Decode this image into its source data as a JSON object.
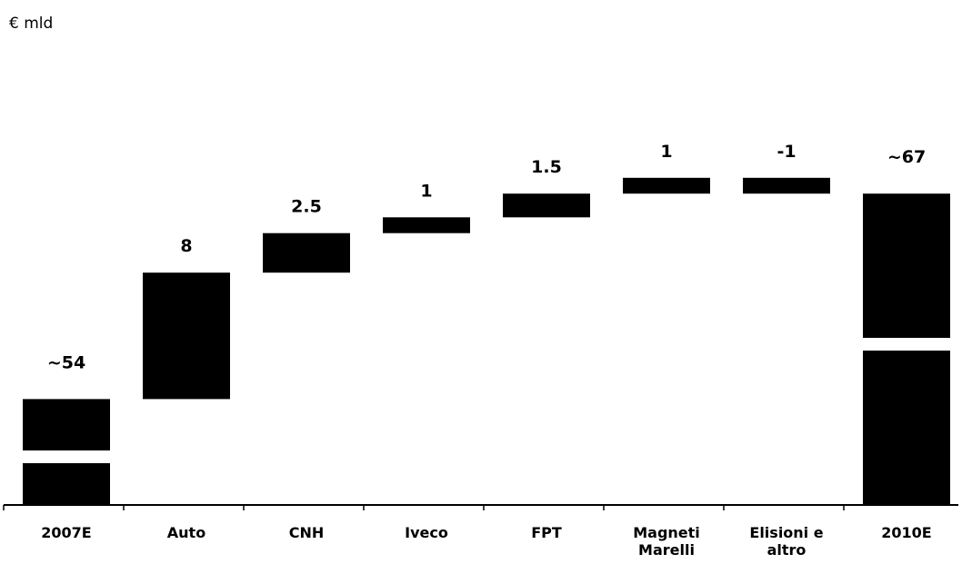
{
  "unit_label": "€ mld",
  "chart_data": {
    "type": "bar",
    "subtype": "waterfall",
    "title": "",
    "ylabel": "€ mld",
    "categories": [
      "2007E",
      "Auto",
      "CNH",
      "Iveco",
      "FPT",
      "Magneti Marelli",
      "Elisioni e altro",
      "2010E"
    ],
    "category_lines": [
      [
        "2007E"
      ],
      [
        "Auto"
      ],
      [
        "CNH"
      ],
      [
        "Iveco"
      ],
      [
        "FPT"
      ],
      [
        "Magneti",
        "Marelli"
      ],
      [
        "Elisioni e",
        "altro"
      ],
      [
        "2010E"
      ]
    ],
    "values": [
      54,
      8,
      2.5,
      1,
      1.5,
      1,
      -1,
      67
    ],
    "value_labels": [
      "~54",
      "8",
      "2.5",
      "1",
      "1.5",
      "1",
      "-1",
      "~67"
    ],
    "bar_kind": [
      "total",
      "delta",
      "delta",
      "delta",
      "delta",
      "delta",
      "delta",
      "total"
    ],
    "axis_break": true,
    "bar_color": "#000000"
  }
}
